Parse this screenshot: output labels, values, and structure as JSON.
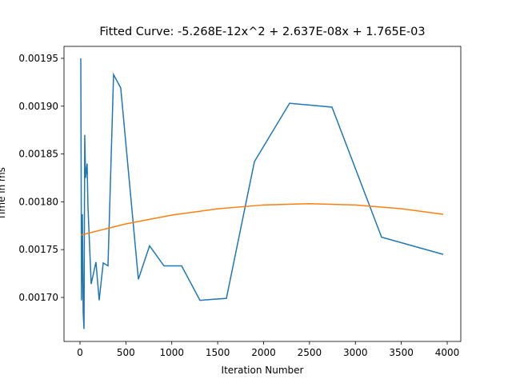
{
  "chart_data": {
    "type": "line",
    "title": "Fitted Curve: -5.268E-12x^2 + 2.637E-08x + 1.765E-03",
    "x_label": "Iteration Number",
    "y_label": "Time in ms",
    "xlim": [
      -174,
      4148
    ],
    "ylim": [
      0.001654,
      0.0019625
    ],
    "xticks": [
      0,
      500,
      1000,
      1500,
      2000,
      2500,
      3000,
      3500,
      4000
    ],
    "yticks": [
      {
        "value": 0.0017,
        "label": "0.00170"
      },
      {
        "value": 0.00175,
        "label": "0.00175"
      },
      {
        "value": 0.0018,
        "label": "0.00180"
      },
      {
        "value": 0.00185,
        "label": "0.00185"
      },
      {
        "value": 0.0019,
        "label": "0.00190"
      },
      {
        "value": 0.00195,
        "label": "0.00195"
      }
    ],
    "series": [
      {
        "color": "#1f77b4",
        "x": [
          9,
          17,
          26,
          35,
          44,
          52,
          61,
          78,
          87,
          122,
          174,
          209,
          253,
          305,
          366,
          444,
          636,
          758,
          915,
          1107,
          1307,
          1595,
          1900,
          2283,
          2745,
          3285,
          3956
        ],
        "values": [
          0.00195,
          0.001697,
          0.001787,
          0.001684,
          0.001667,
          0.00187,
          0.001825,
          0.00184,
          0.001795,
          0.001714,
          0.001737,
          0.001697,
          0.001736,
          0.001733,
          0.001933,
          0.001919,
          0.001719,
          0.001754,
          0.001733,
          0.001733,
          0.001697,
          0.001699,
          0.001842,
          0.001903,
          0.001899,
          0.001763,
          0.001745
        ]
      },
      {
        "color": "#ff7f0e",
        "x": [
          9,
          500,
          1000,
          1500,
          2000,
          2500,
          3000,
          3500,
          3956
        ],
        "values": [
          0.0017652,
          0.0017769,
          0.0017861,
          0.0017927,
          0.0017967,
          0.001798,
          0.0017967,
          0.0017928,
          0.0017869
        ]
      }
    ]
  }
}
